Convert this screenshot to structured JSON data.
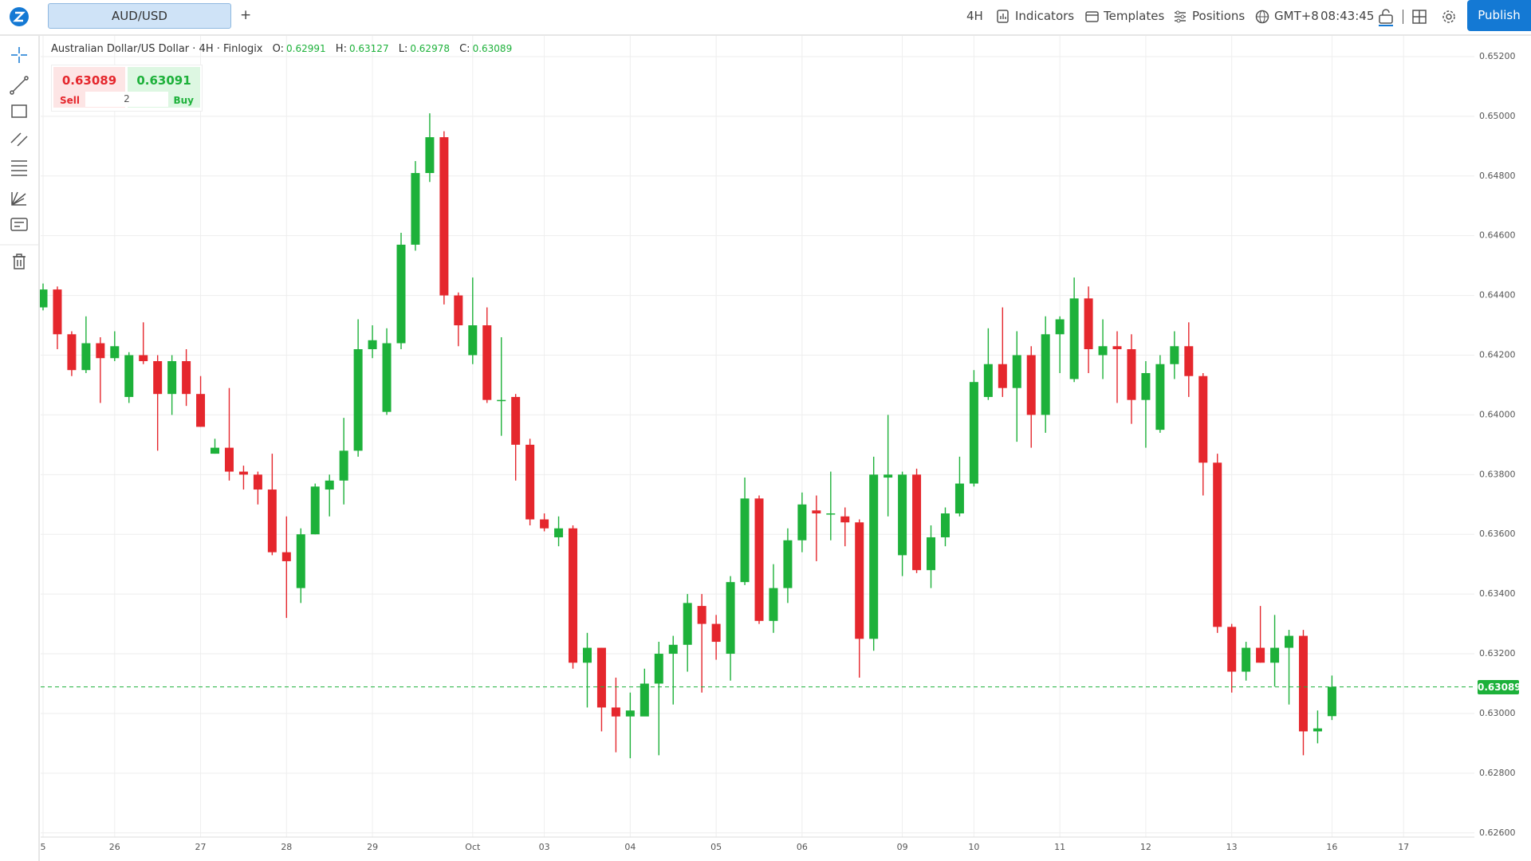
{
  "toolbar": {
    "symbol_tab": "AUD/USD",
    "add_tab": "+",
    "interval": "4H",
    "indicators": "Indicators",
    "templates": "Templates",
    "positions": "Positions",
    "timezone": "GMT+8",
    "clock": "08:43:45",
    "publish": "Publish"
  },
  "legend": {
    "instrument": "Australian Dollar/US Dollar · 4H · Finlogix",
    "labels": [
      "O:",
      "H:",
      "L:",
      "C:"
    ]
  },
  "trade_panel": {
    "sell_price": 0.63089,
    "buy_price": 0.63091,
    "quantity": 2,
    "sell": "Sell",
    "buy": "Buy"
  },
  "chart_data": {
    "type": "candlestick",
    "up_color": "#1db13a",
    "down_color": "#e5272d",
    "grid": true,
    "categories": [
      "5",
      null,
      null,
      null,
      null,
      "26",
      null,
      null,
      null,
      null,
      null,
      "27",
      null,
      null,
      null,
      null,
      null,
      "28",
      null,
      null,
      null,
      null,
      null,
      "29",
      null,
      null,
      null,
      null,
      null,
      null,
      "Oct",
      null,
      null,
      null,
      null,
      "03",
      null,
      null,
      null,
      null,
      null,
      "04",
      null,
      null,
      null,
      null,
      null,
      "05",
      null,
      null,
      null,
      null,
      null,
      "06",
      null,
      null,
      null,
      null,
      null,
      null,
      "09",
      null,
      null,
      null,
      null,
      "10",
      null,
      null,
      null,
      null,
      null,
      "11",
      null,
      null,
      null,
      null,
      null,
      "12",
      null,
      null,
      null,
      null,
      null,
      "13",
      null,
      null,
      null,
      null,
      null,
      null,
      "16",
      null,
      null,
      null,
      null,
      "17",
      null,
      null,
      null,
      null
    ],
    "open": [
      0.6436,
      0.6442,
      0.6427,
      0.6415,
      0.6424,
      0.6419,
      0.6406,
      0.642,
      0.6418,
      0.6407,
      0.6418,
      0.6407,
      0.6387,
      0.6389,
      0.6381,
      0.638,
      0.6375,
      0.6354,
      0.6342,
      0.636,
      0.6375,
      0.6378,
      0.6388,
      0.6422,
      0.6401,
      0.6424,
      0.6457,
      0.6481,
      0.6493,
      0.644,
      0.642,
      0.643,
      0.6405,
      0.6406,
      0.639,
      0.6365,
      0.6359,
      0.6362,
      0.6317,
      0.6322,
      0.6302,
      0.6299,
      0.6299,
      0.631,
      0.632,
      0.6323,
      0.6336,
      0.633,
      0.632,
      0.6344,
      0.6372,
      0.6331,
      0.6342,
      0.6358,
      0.6368,
      0.6367,
      0.6366,
      0.6364,
      0.6325,
      0.6379,
      0.6353,
      0.638,
      0.6348,
      0.6359,
      0.6367,
      0.6377,
      0.6406,
      0.6417,
      0.6409,
      0.642,
      0.64,
      0.6427,
      0.6412,
      0.6439,
      0.642,
      0.6423,
      0.6422,
      0.6405,
      0.6395,
      0.6417,
      0.6423,
      0.6413,
      0.6384,
      0.6329,
      0.6314,
      0.6322,
      0.6317,
      0.6322,
      0.6326,
      0.6294,
      0.62991,
      null,
      null,
      null,
      null,
      null,
      null,
      null,
      null,
      null
    ],
    "high": [
      0.6444,
      0.6443,
      0.6428,
      0.6433,
      0.6426,
      0.6428,
      0.6421,
      0.6431,
      0.642,
      0.642,
      0.6422,
      0.6413,
      0.6392,
      0.6409,
      0.6383,
      0.6381,
      0.6387,
      0.6366,
      0.6362,
      0.6377,
      0.638,
      0.6399,
      0.6432,
      0.643,
      0.6429,
      0.6461,
      0.6485,
      0.6501,
      0.6495,
      0.6441,
      0.6446,
      0.6436,
      0.6426,
      0.6407,
      0.6392,
      0.6367,
      0.6366,
      0.6363,
      0.6327,
      0.6322,
      0.6312,
      0.6307,
      0.6315,
      0.6324,
      0.6326,
      0.634,
      0.634,
      0.6333,
      0.6346,
      0.6379,
      0.6373,
      0.635,
      0.6362,
      0.6374,
      0.6373,
      0.6381,
      0.6369,
      0.6365,
      0.6386,
      0.64,
      0.6381,
      0.6382,
      0.6363,
      0.6369,
      0.6386,
      0.6415,
      0.6429,
      0.6436,
      0.6428,
      0.6423,
      0.6433,
      0.6433,
      0.6446,
      0.6443,
      0.6432,
      0.6428,
      0.6427,
      0.6418,
      0.642,
      0.6428,
      0.6431,
      0.6414,
      0.6387,
      0.633,
      0.6324,
      0.6336,
      0.6333,
      0.6328,
      0.6328,
      0.6301,
      0.63127,
      null,
      null,
      null,
      null,
      null,
      null,
      null,
      null,
      null
    ],
    "low": [
      0.6435,
      0.6422,
      0.6413,
      0.6414,
      0.6404,
      0.6418,
      0.6404,
      0.6417,
      0.6388,
      0.64,
      0.6403,
      0.6396,
      0.6387,
      0.6378,
      0.6375,
      0.637,
      0.6353,
      0.6332,
      0.6337,
      0.636,
      0.6366,
      0.637,
      0.6386,
      0.6419,
      0.64,
      0.6422,
      0.6455,
      0.6478,
      0.6437,
      0.6423,
      0.6417,
      0.6404,
      0.6393,
      0.6378,
      0.6363,
      0.6361,
      0.6356,
      0.6315,
      0.6302,
      0.6294,
      0.6287,
      0.6285,
      0.63,
      0.6286,
      0.6303,
      0.6314,
      0.6307,
      0.6318,
      0.6311,
      0.6343,
      0.633,
      0.6327,
      0.6337,
      0.6354,
      0.6351,
      0.6358,
      0.6356,
      0.6312,
      0.6321,
      0.6366,
      0.6346,
      0.6347,
      0.6342,
      0.6356,
      0.6366,
      0.6376,
      0.6405,
      0.6406,
      0.6391,
      0.6389,
      0.6394,
      0.6414,
      0.6411,
      0.6414,
      0.6412,
      0.6404,
      0.6397,
      0.6389,
      0.6394,
      0.6412,
      0.6406,
      0.6373,
      0.6327,
      0.6307,
      0.6311,
      0.6317,
      0.6309,
      0.6303,
      0.6286,
      0.629,
      0.62978,
      null,
      null,
      null,
      null,
      null,
      null,
      null,
      null,
      null
    ],
    "close": [
      0.6442,
      0.6427,
      0.6415,
      0.6424,
      0.6419,
      0.6423,
      0.642,
      0.6418,
      0.6407,
      0.6418,
      0.6407,
      0.6396,
      0.6389,
      0.6381,
      0.638,
      0.6375,
      0.6354,
      0.6351,
      0.636,
      0.6376,
      0.6378,
      0.6388,
      0.6422,
      0.6425,
      0.6424,
      0.6457,
      0.6481,
      0.6493,
      0.644,
      0.643,
      0.643,
      0.6405,
      0.6405,
      0.639,
      0.6365,
      0.6362,
      0.6362,
      0.6317,
      0.6322,
      0.6302,
      0.6299,
      0.6301,
      0.631,
      0.632,
      0.6323,
      0.6337,
      0.633,
      0.6324,
      0.6344,
      0.6372,
      0.6331,
      0.6342,
      0.6358,
      0.637,
      0.6367,
      0.6367,
      0.6364,
      0.6325,
      0.638,
      0.638,
      0.638,
      0.6348,
      0.6359,
      0.6367,
      0.6377,
      0.6411,
      0.6417,
      0.6409,
      0.642,
      0.64,
      0.6427,
      0.6432,
      0.6439,
      0.6422,
      0.6423,
      0.6422,
      0.6405,
      0.6414,
      0.6417,
      0.6423,
      0.6413,
      0.6384,
      0.6329,
      0.6314,
      0.6322,
      0.6317,
      0.6322,
      0.6326,
      0.6294,
      0.6295,
      0.63089,
      null,
      null,
      null,
      null,
      null,
      null,
      null,
      null,
      null
    ],
    "ylim": [
      0.62586,
      0.65272
    ],
    "yticks": [
      {
        "value": 0.626,
        "label": "0.62600"
      },
      {
        "value": 0.628,
        "label": "0.62800"
      },
      {
        "value": 0.63,
        "label": "0.63000"
      },
      {
        "value": 0.632,
        "label": "0.63200"
      },
      {
        "value": 0.634,
        "label": "0.63400"
      },
      {
        "value": 0.636,
        "label": "0.63600"
      },
      {
        "value": 0.638,
        "label": "0.63800"
      },
      {
        "value": 0.64,
        "label": "0.64000"
      },
      {
        "value": 0.642,
        "label": "0.64200"
      },
      {
        "value": 0.644,
        "label": "0.64400"
      },
      {
        "value": 0.646,
        "label": "0.64600"
      },
      {
        "value": 0.648,
        "label": "0.64800"
      },
      {
        "value": 0.65,
        "label": "0.65000"
      },
      {
        "value": 0.652,
        "label": "0.65200"
      }
    ]
  }
}
